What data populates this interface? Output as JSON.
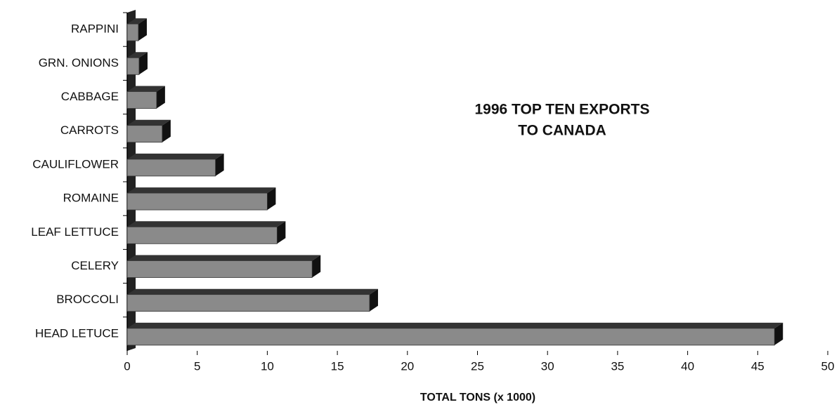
{
  "chart_data": {
    "type": "bar3d-horizontal",
    "title": [
      "1996 TOP TEN EXPORTS",
      "TO CANADA"
    ],
    "xlabel": "TOTAL TONS (x 1000)",
    "categories": [
      "RAPPINI",
      "GRN. ONIONS",
      "CABBAGE",
      "CARROTS",
      "CAULIFLOWER",
      "ROMAINE",
      "LEAF LETTUCE",
      "CELERY",
      "BROCCOLI",
      "HEAD LETUCE"
    ],
    "values": [
      0.8,
      0.85,
      2.1,
      2.5,
      6.3,
      10.0,
      10.7,
      13.2,
      17.3,
      46.2
    ],
    "color": "#8a8a8a",
    "xlim": [
      0,
      50
    ],
    "xticks": [
      0,
      5,
      10,
      15,
      20,
      25,
      30,
      35,
      40,
      45,
      50
    ]
  }
}
